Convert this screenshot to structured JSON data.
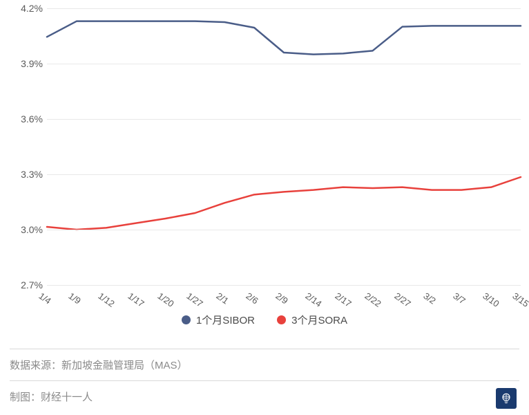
{
  "chart": {
    "type": "line",
    "background_color": "#ffffff",
    "grid_color": "#e8e8e8",
    "axis_text_color": "#5a5a5a",
    "axis_fontsize": 14,
    "x_labels": [
      "1/4",
      "1/9",
      "1/12",
      "1/17",
      "1/20",
      "1/27",
      "2/1",
      "2/6",
      "2/9",
      "2/14",
      "2/17",
      "2/22",
      "2/27",
      "3/2",
      "3/7",
      "3/10",
      "3/15"
    ],
    "x_label_rotation": 35,
    "y_min": 2.7,
    "y_max": 4.2,
    "y_ticks": [
      2.7,
      3.0,
      3.3,
      3.6,
      3.9,
      4.2
    ],
    "y_tick_labels": [
      "2.7%",
      "3.0%",
      "3.3%",
      "3.6%",
      "3.9%",
      "4.2%"
    ],
    "y_tick_step": 0.3,
    "series": [
      {
        "name": "1个月SIBOR",
        "color": "#4a5d88",
        "line_width": 2.5,
        "values": [
          4.045,
          4.13,
          4.13,
          4.13,
          4.13,
          4.13,
          4.125,
          4.095,
          3.96,
          3.95,
          3.955,
          3.97,
          4.1,
          4.105,
          4.105,
          4.105,
          4.105
        ]
      },
      {
        "name": "3个月SORA",
        "color": "#e8413c",
        "line_width": 2.5,
        "values": [
          3.015,
          3.0,
          3.01,
          3.035,
          3.06,
          3.09,
          3.145,
          3.19,
          3.205,
          3.215,
          3.23,
          3.225,
          3.23,
          3.215,
          3.215,
          3.23,
          3.285
        ]
      }
    ],
    "legend": {
      "items": [
        "1个月SIBOR",
        "3个月SORA"
      ],
      "colors": [
        "#4a5d88",
        "#e8413c"
      ],
      "fontsize": 15,
      "text_color": "#4a4a4a"
    }
  },
  "footer": {
    "source_label": "数据来源：新加坡金融管理局（MAS）",
    "credit_label": "制图：财经十一人",
    "text_color": "#8a8a8a",
    "divider_color": "#d9d9d9",
    "watermark_bg": "#1a3a6e"
  }
}
